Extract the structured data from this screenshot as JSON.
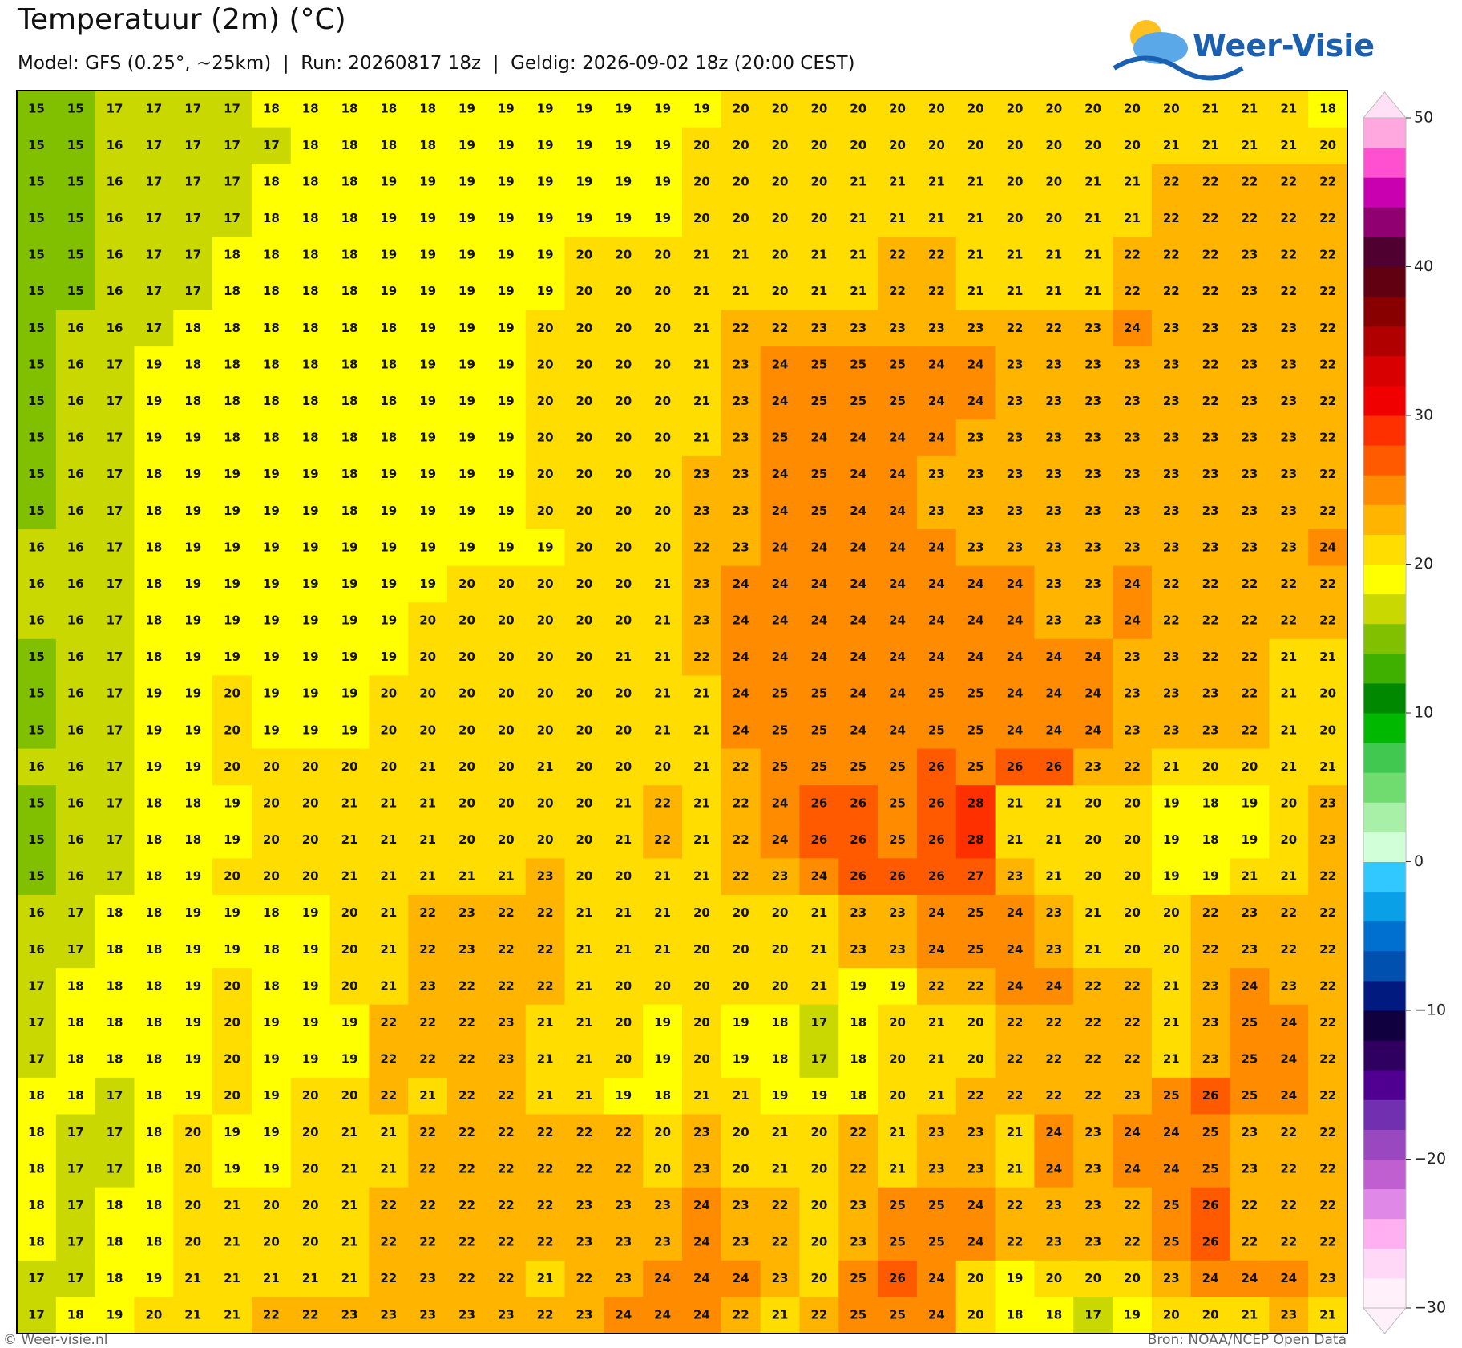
{
  "header": {
    "title": "Temperatuur (2m) (°C)",
    "subtitle": "Model: GFS (0.25°, ~25km)  |  Run: 20260817 18z  |  Geldig: 2026-09-02 18z (20:00 CEST)"
  },
  "logo": {
    "text": "Weer-Visie"
  },
  "colorbar": {
    "lim": [
      -30,
      50
    ],
    "ticks": [
      50,
      40,
      30,
      20,
      10,
      0,
      {
        "value": -10,
        "label": "−10"
      },
      {
        "value": -20,
        "label": "−20"
      },
      {
        "value": -30,
        "label": "−30"
      }
    ]
  },
  "grid": {
    "rows": [
      [
        15,
        15,
        17,
        17,
        17,
        17,
        18,
        18,
        18,
        18,
        18,
        19,
        19,
        19,
        19,
        19,
        19,
        19,
        20,
        20,
        20,
        20,
        20,
        20,
        20,
        20,
        20,
        20,
        20,
        20,
        21,
        21,
        21,
        18
      ],
      [
        15,
        15,
        16,
        17,
        17,
        17,
        17,
        18,
        18,
        18,
        18,
        19,
        19,
        19,
        19,
        19,
        19,
        20,
        20,
        20,
        20,
        20,
        20,
        20,
        20,
        20,
        20,
        20,
        20,
        21,
        21,
        21,
        21,
        20
      ],
      [
        15,
        15,
        16,
        17,
        17,
        17,
        18,
        18,
        18,
        19,
        19,
        19,
        19,
        19,
        19,
        19,
        19,
        20,
        20,
        20,
        20,
        21,
        21,
        21,
        21,
        20,
        20,
        21,
        21,
        22,
        22,
        22,
        22,
        22
      ],
      [
        15,
        15,
        16,
        17,
        17,
        17,
        18,
        18,
        18,
        19,
        19,
        19,
        19,
        19,
        19,
        19,
        19,
        20,
        20,
        20,
        20,
        21,
        21,
        21,
        21,
        20,
        20,
        21,
        21,
        22,
        22,
        22,
        22,
        22
      ],
      [
        15,
        15,
        16,
        17,
        17,
        18,
        18,
        18,
        18,
        19,
        19,
        19,
        19,
        19,
        20,
        20,
        20,
        21,
        21,
        20,
        21,
        21,
        22,
        22,
        21,
        21,
        21,
        21,
        22,
        22,
        22,
        23,
        22,
        22
      ],
      [
        15,
        15,
        16,
        17,
        17,
        18,
        18,
        18,
        18,
        19,
        19,
        19,
        19,
        19,
        20,
        20,
        20,
        21,
        21,
        20,
        21,
        21,
        22,
        22,
        21,
        21,
        21,
        21,
        22,
        22,
        22,
        23,
        22,
        22
      ],
      [
        15,
        16,
        16,
        17,
        18,
        18,
        18,
        18,
        18,
        18,
        19,
        19,
        19,
        20,
        20,
        20,
        20,
        21,
        22,
        22,
        23,
        23,
        23,
        23,
        23,
        22,
        22,
        23,
        24,
        23,
        23,
        23,
        23,
        22
      ],
      [
        15,
        16,
        17,
        19,
        18,
        18,
        18,
        18,
        18,
        18,
        19,
        19,
        19,
        20,
        20,
        20,
        20,
        21,
        23,
        24,
        25,
        25,
        25,
        24,
        24,
        23,
        23,
        23,
        23,
        23,
        22,
        23,
        23,
        22
      ],
      [
        15,
        16,
        17,
        19,
        18,
        18,
        18,
        18,
        18,
        18,
        19,
        19,
        19,
        20,
        20,
        20,
        20,
        21,
        23,
        24,
        25,
        25,
        25,
        24,
        24,
        23,
        23,
        23,
        23,
        23,
        22,
        23,
        23,
        22
      ],
      [
        15,
        16,
        17,
        19,
        19,
        18,
        18,
        18,
        18,
        18,
        19,
        19,
        19,
        20,
        20,
        20,
        20,
        21,
        23,
        25,
        24,
        24,
        24,
        24,
        23,
        23,
        23,
        23,
        23,
        23,
        23,
        23,
        23,
        22
      ],
      [
        15,
        16,
        17,
        18,
        19,
        19,
        19,
        19,
        18,
        19,
        19,
        19,
        19,
        20,
        20,
        20,
        20,
        23,
        23,
        24,
        25,
        24,
        24,
        23,
        23,
        23,
        23,
        23,
        23,
        23,
        23,
        23,
        23,
        22
      ],
      [
        15,
        16,
        17,
        18,
        19,
        19,
        19,
        19,
        18,
        19,
        19,
        19,
        19,
        20,
        20,
        20,
        20,
        23,
        23,
        24,
        25,
        24,
        24,
        23,
        23,
        23,
        23,
        23,
        23,
        23,
        23,
        23,
        23,
        22
      ],
      [
        16,
        16,
        17,
        18,
        19,
        19,
        19,
        19,
        19,
        19,
        19,
        19,
        19,
        19,
        20,
        20,
        20,
        22,
        23,
        24,
        24,
        24,
        24,
        24,
        23,
        23,
        23,
        23,
        23,
        23,
        23,
        23,
        23,
        24
      ],
      [
        16,
        16,
        17,
        18,
        19,
        19,
        19,
        19,
        19,
        19,
        19,
        20,
        20,
        20,
        20,
        20,
        21,
        23,
        24,
        24,
        24,
        24,
        24,
        24,
        24,
        24,
        23,
        23,
        24,
        22,
        22,
        22,
        22,
        22
      ],
      [
        16,
        16,
        17,
        18,
        19,
        19,
        19,
        19,
        19,
        19,
        20,
        20,
        20,
        20,
        20,
        20,
        21,
        23,
        24,
        24,
        24,
        24,
        24,
        24,
        24,
        24,
        23,
        23,
        24,
        22,
        22,
        22,
        22,
        22
      ],
      [
        15,
        16,
        17,
        18,
        19,
        19,
        19,
        19,
        19,
        19,
        20,
        20,
        20,
        20,
        20,
        21,
        21,
        22,
        24,
        24,
        24,
        24,
        24,
        24,
        24,
        24,
        24,
        24,
        23,
        23,
        22,
        22,
        21,
        21
      ],
      [
        15,
        16,
        17,
        19,
        19,
        20,
        19,
        19,
        19,
        20,
        20,
        20,
        20,
        20,
        20,
        20,
        21,
        21,
        24,
        25,
        25,
        24,
        24,
        25,
        25,
        24,
        24,
        24,
        23,
        23,
        23,
        22,
        21,
        20
      ],
      [
        15,
        16,
        17,
        19,
        19,
        20,
        19,
        19,
        19,
        20,
        20,
        20,
        20,
        20,
        20,
        20,
        21,
        21,
        24,
        25,
        25,
        24,
        24,
        25,
        25,
        24,
        24,
        24,
        23,
        23,
        23,
        22,
        21,
        20
      ],
      [
        16,
        16,
        17,
        19,
        19,
        20,
        20,
        20,
        20,
        20,
        21,
        20,
        20,
        21,
        20,
        20,
        20,
        21,
        22,
        25,
        25,
        25,
        25,
        26,
        25,
        26,
        26,
        23,
        22,
        21,
        20,
        20,
        21,
        21
      ],
      [
        15,
        16,
        17,
        18,
        18,
        19,
        20,
        20,
        21,
        21,
        21,
        20,
        20,
        20,
        20,
        21,
        22,
        21,
        22,
        24,
        26,
        26,
        25,
        26,
        28,
        21,
        21,
        20,
        20,
        19,
        18,
        19,
        20,
        23
      ],
      [
        15,
        16,
        17,
        18,
        18,
        19,
        20,
        20,
        21,
        21,
        21,
        20,
        20,
        20,
        20,
        21,
        22,
        21,
        22,
        24,
        26,
        26,
        25,
        26,
        28,
        21,
        21,
        20,
        20,
        19,
        18,
        19,
        20,
        23
      ],
      [
        15,
        16,
        17,
        18,
        19,
        20,
        20,
        20,
        21,
        21,
        21,
        21,
        21,
        23,
        20,
        20,
        21,
        21,
        22,
        23,
        24,
        26,
        26,
        26,
        27,
        23,
        21,
        20,
        20,
        19,
        19,
        21,
        21,
        22
      ],
      [
        16,
        17,
        18,
        18,
        19,
        19,
        18,
        19,
        20,
        21,
        22,
        23,
        22,
        22,
        21,
        21,
        21,
        20,
        20,
        20,
        21,
        23,
        23,
        24,
        25,
        24,
        23,
        21,
        20,
        20,
        22,
        23,
        22,
        22
      ],
      [
        16,
        17,
        18,
        18,
        19,
        19,
        18,
        19,
        20,
        21,
        22,
        23,
        22,
        22,
        21,
        21,
        21,
        20,
        20,
        20,
        21,
        23,
        23,
        24,
        25,
        24,
        23,
        21,
        20,
        20,
        22,
        23,
        22,
        22
      ],
      [
        17,
        18,
        18,
        18,
        19,
        20,
        18,
        19,
        20,
        21,
        23,
        22,
        22,
        22,
        21,
        20,
        20,
        20,
        20,
        20,
        21,
        19,
        19,
        22,
        22,
        24,
        24,
        22,
        22,
        21,
        23,
        24,
        23,
        22
      ],
      [
        17,
        18,
        18,
        18,
        19,
        20,
        19,
        19,
        19,
        22,
        22,
        22,
        23,
        21,
        21,
        20,
        19,
        20,
        19,
        18,
        17,
        18,
        20,
        21,
        20,
        22,
        22,
        22,
        22,
        21,
        23,
        25,
        24,
        22
      ],
      [
        17,
        18,
        18,
        18,
        19,
        20,
        19,
        19,
        19,
        22,
        22,
        22,
        23,
        21,
        21,
        20,
        19,
        20,
        19,
        18,
        17,
        18,
        20,
        21,
        20,
        22,
        22,
        22,
        22,
        21,
        23,
        25,
        24,
        22
      ],
      [
        18,
        18,
        17,
        18,
        19,
        20,
        19,
        20,
        20,
        22,
        21,
        22,
        22,
        21,
        21,
        19,
        18,
        21,
        21,
        19,
        19,
        18,
        20,
        21,
        22,
        22,
        22,
        22,
        23,
        25,
        26,
        25,
        24,
        22
      ],
      [
        18,
        17,
        17,
        18,
        20,
        19,
        19,
        20,
        21,
        21,
        22,
        22,
        22,
        22,
        22,
        22,
        20,
        23,
        20,
        21,
        20,
        22,
        21,
        23,
        23,
        21,
        24,
        23,
        24,
        24,
        25,
        23,
        22,
        22
      ],
      [
        18,
        17,
        17,
        18,
        20,
        19,
        19,
        20,
        21,
        21,
        22,
        22,
        22,
        22,
        22,
        22,
        20,
        23,
        20,
        21,
        20,
        22,
        21,
        23,
        23,
        21,
        24,
        23,
        24,
        24,
        25,
        23,
        22,
        22
      ],
      [
        18,
        17,
        18,
        18,
        20,
        21,
        20,
        20,
        21,
        22,
        22,
        22,
        22,
        22,
        23,
        23,
        23,
        24,
        23,
        22,
        20,
        23,
        25,
        25,
        24,
        22,
        23,
        23,
        22,
        25,
        26,
        22,
        22,
        22
      ],
      [
        18,
        17,
        18,
        18,
        20,
        21,
        20,
        20,
        21,
        22,
        22,
        22,
        22,
        22,
        23,
        23,
        23,
        24,
        23,
        22,
        20,
        23,
        25,
        25,
        24,
        22,
        23,
        23,
        22,
        25,
        26,
        22,
        22,
        22
      ],
      [
        17,
        17,
        18,
        19,
        21,
        21,
        21,
        21,
        21,
        22,
        23,
        22,
        22,
        21,
        22,
        23,
        24,
        24,
        24,
        23,
        20,
        25,
        26,
        24,
        20,
        19,
        20,
        20,
        20,
        23,
        24,
        24,
        24,
        23
      ],
      [
        17,
        18,
        19,
        20,
        21,
        21,
        22,
        22,
        23,
        23,
        23,
        23,
        23,
        22,
        23,
        24,
        24,
        24,
        22,
        21,
        22,
        25,
        25,
        24,
        20,
        18,
        18,
        17,
        19,
        20,
        20,
        21,
        23,
        21
      ]
    ]
  },
  "footer": {
    "left": "© Weer-visie.nl",
    "right": "Bron: NOAA/NCEP Open Data"
  }
}
